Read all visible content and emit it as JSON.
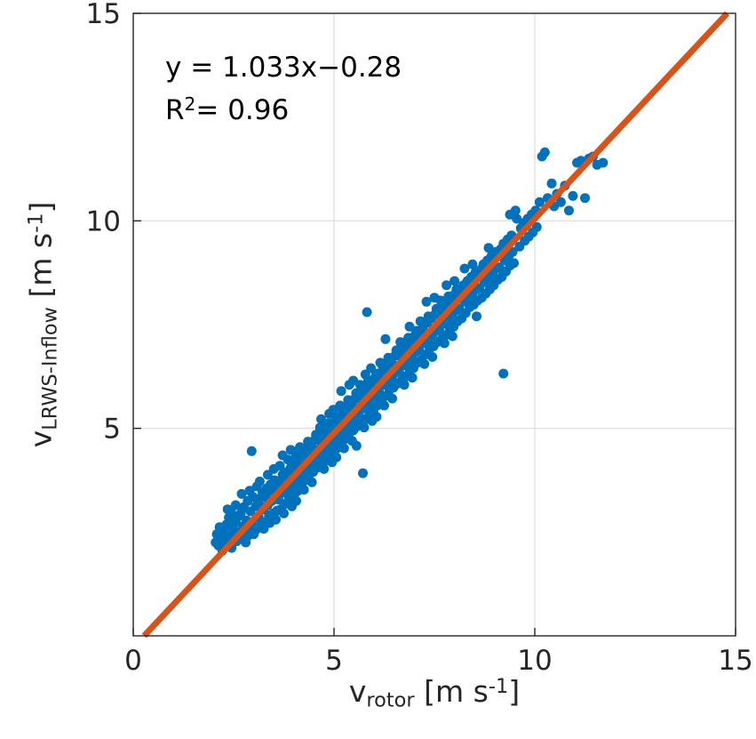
{
  "figure": {
    "background": "#ffffff"
  },
  "annotation": {
    "equation": "y = 1.033x−0.28",
    "r2_prefix": "R",
    "r2_sup": "2",
    "r2_rest": "= 0.96"
  },
  "axes": {
    "xlabel": {
      "base": "v",
      "sub": "rotor",
      "unit_open": " [m s",
      "sup": "-1",
      "unit_close": "]"
    },
    "ylabel": {
      "base": "v",
      "sub": "LRWS-Inflow",
      "unit_open": " [m s",
      "sup": "-1",
      "unit_close": "]"
    }
  },
  "chart_data": {
    "type": "scatter",
    "title": "",
    "xlabel": "v_rotor [m s^-1]",
    "ylabel": "v_LRWS-Inflow [m s^-1]",
    "xlim": [
      0,
      15
    ],
    "ylim": [
      0,
      15
    ],
    "x_ticks": [
      0,
      5,
      10,
      15
    ],
    "y_ticks": [
      5,
      10,
      15
    ],
    "grid": true,
    "grid_color": "#dcdcdc",
    "axes_color": "#262626",
    "marker_color": "#0072BD",
    "fit_line": {
      "slope": 1.033,
      "intercept": -0.28,
      "r_squared": 0.96,
      "color": "#D95319",
      "label": "y = 1.033x−0.28"
    },
    "points": [
      [
        2.05,
        2.25
      ],
      [
        2.08,
        2.45
      ],
      [
        2.12,
        2.18
      ],
      [
        2.15,
        2.62
      ],
      [
        2.18,
        2.3
      ],
      [
        2.22,
        2.05
      ],
      [
        2.25,
        2.52
      ],
      [
        2.28,
        2.33
      ],
      [
        2.32,
        2.68
      ],
      [
        2.35,
        2.2
      ],
      [
        2.38,
        2.85
      ],
      [
        2.42,
        2.4
      ],
      [
        2.45,
        2.12
      ],
      [
        2.48,
        2.58
      ],
      [
        2.52,
        2.35
      ],
      [
        2.55,
        2.75
      ],
      [
        2.58,
        2.28
      ],
      [
        2.35,
        3.05
      ],
      [
        2.45,
        2.95
      ],
      [
        2.55,
        3.15
      ],
      [
        2.6,
        2.5
      ],
      [
        2.62,
        2.88
      ],
      [
        2.65,
        2.42
      ],
      [
        2.68,
        2.95
      ],
      [
        2.72,
        2.6
      ],
      [
        2.75,
        3.1
      ],
      [
        2.78,
        2.35
      ],
      [
        2.82,
        2.78
      ],
      [
        2.85,
        3.25
      ],
      [
        2.88,
        2.55
      ],
      [
        2.92,
        3.0
      ],
      [
        2.95,
        2.7
      ],
      [
        2.98,
        3.35
      ],
      [
        3.02,
        2.62
      ],
      [
        3.05,
        3.12
      ],
      [
        3.08,
        2.85
      ],
      [
        2.7,
        3.42
      ],
      [
        2.8,
        2.25
      ],
      [
        2.9,
        3.5
      ],
      [
        3.0,
        2.45
      ],
      [
        3.1,
        3.28
      ],
      [
        2.95,
        4.45
      ],
      [
        2.85,
        2.4
      ],
      [
        3.05,
        2.55
      ],
      [
        2.75,
        2.65
      ],
      [
        3.08,
        3.6
      ],
      [
        3.12,
        2.88
      ],
      [
        3.15,
        3.3
      ],
      [
        3.18,
        2.65
      ],
      [
        3.22,
        3.45
      ],
      [
        3.25,
        3.05
      ],
      [
        3.28,
        2.75
      ],
      [
        3.32,
        3.55
      ],
      [
        3.35,
        3.15
      ],
      [
        3.38,
        2.9
      ],
      [
        3.42,
        3.65
      ],
      [
        3.45,
        3.25
      ],
      [
        3.48,
        2.95
      ],
      [
        3.52,
        3.75
      ],
      [
        3.55,
        3.35
      ],
      [
        3.58,
        3.02
      ],
      [
        3.15,
        3.72
      ],
      [
        3.25,
        2.58
      ],
      [
        3.35,
        3.88
      ],
      [
        3.45,
        3.5
      ],
      [
        3.55,
        2.8
      ],
      [
        3.6,
        3.42
      ],
      [
        3.2,
        3.1
      ],
      [
        3.3,
        3.35
      ],
      [
        3.4,
        2.72
      ],
      [
        3.5,
        4.02
      ],
      [
        3.58,
        3.6
      ],
      [
        3.62,
        3.28
      ],
      [
        3.65,
        3.72
      ],
      [
        3.68,
        3.05
      ],
      [
        3.72,
        3.88
      ],
      [
        3.75,
        3.45
      ],
      [
        3.78,
        3.18
      ],
      [
        3.82,
        3.95
      ],
      [
        3.85,
        3.55
      ],
      [
        3.88,
        3.3
      ],
      [
        3.92,
        4.05
      ],
      [
        3.95,
        3.65
      ],
      [
        3.98,
        3.38
      ],
      [
        4.02,
        4.15
      ],
      [
        4.05,
        3.75
      ],
      [
        4.08,
        3.48
      ],
      [
        3.65,
        4.1
      ],
      [
        3.75,
        2.95
      ],
      [
        3.85,
        4.25
      ],
      [
        3.95,
        3.12
      ],
      [
        4.05,
        4.32
      ],
      [
        3.7,
        3.6
      ],
      [
        3.8,
        3.8
      ],
      [
        3.9,
        3.52
      ],
      [
        4.0,
        3.9
      ],
      [
        4.08,
        4.45
      ],
      [
        3.72,
        4.35
      ],
      [
        3.92,
        4.48
      ],
      [
        4.06,
        3.25
      ],
      [
        4.12,
        3.85
      ],
      [
        4.15,
        4.28
      ],
      [
        4.18,
        3.62
      ],
      [
        4.22,
        4.42
      ],
      [
        4.25,
        4.02
      ],
      [
        4.28,
        3.75
      ],
      [
        4.32,
        4.52
      ],
      [
        4.35,
        4.12
      ],
      [
        4.38,
        3.88
      ],
      [
        4.42,
        4.62
      ],
      [
        4.45,
        4.22
      ],
      [
        4.48,
        3.95
      ],
      [
        4.52,
        4.72
      ],
      [
        4.55,
        4.32
      ],
      [
        4.58,
        4.05
      ],
      [
        4.15,
        4.55
      ],
      [
        4.25,
        3.52
      ],
      [
        4.35,
        4.68
      ],
      [
        4.45,
        3.7
      ],
      [
        4.55,
        4.85
      ],
      [
        4.2,
        4.15
      ],
      [
        4.3,
        4.35
      ],
      [
        4.4,
        4.0
      ],
      [
        4.5,
        4.5
      ],
      [
        4.58,
        4.4
      ],
      [
        4.12,
        4.05
      ],
      [
        4.22,
        3.7
      ],
      [
        4.32,
        3.95
      ],
      [
        4.42,
        4.38
      ],
      [
        4.52,
        4.18
      ],
      [
        4.62,
        4.35
      ],
      [
        4.65,
        4.75
      ],
      [
        4.68,
        4.12
      ],
      [
        4.72,
        4.88
      ],
      [
        4.75,
        4.48
      ],
      [
        4.78,
        4.22
      ],
      [
        4.82,
        4.98
      ],
      [
        4.85,
        4.58
      ],
      [
        4.88,
        4.32
      ],
      [
        4.92,
        5.08
      ],
      [
        4.95,
        4.68
      ],
      [
        4.98,
        4.42
      ],
      [
        5.02,
        5.18
      ],
      [
        5.05,
        4.78
      ],
      [
        5.08,
        4.52
      ],
      [
        4.65,
        5.02
      ],
      [
        4.75,
        4.02
      ],
      [
        4.85,
        5.12
      ],
      [
        4.95,
        4.18
      ],
      [
        5.05,
        5.28
      ],
      [
        4.7,
        4.62
      ],
      [
        4.8,
        4.82
      ],
      [
        4.9,
        4.5
      ],
      [
        5.0,
        4.95
      ],
      [
        5.08,
        5.05
      ],
      [
        4.62,
        4.88
      ],
      [
        4.72,
        4.28
      ],
      [
        4.82,
        4.45
      ],
      [
        4.92,
        4.85
      ],
      [
        5.02,
        4.62
      ],
      [
        4.68,
        5.22
      ],
      [
        4.88,
        5.35
      ],
      [
        4.98,
        5.45
      ],
      [
        5.06,
        4.3
      ],
      [
        5.12,
        4.85
      ],
      [
        5.15,
        5.28
      ],
      [
        5.18,
        4.62
      ],
      [
        5.22,
        5.42
      ],
      [
        5.25,
        5.02
      ],
      [
        5.28,
        4.75
      ],
      [
        5.32,
        5.52
      ],
      [
        5.35,
        5.12
      ],
      [
        5.38,
        4.88
      ],
      [
        5.42,
        5.62
      ],
      [
        5.45,
        5.22
      ],
      [
        5.48,
        4.95
      ],
      [
        5.52,
        5.72
      ],
      [
        5.55,
        5.32
      ],
      [
        5.58,
        5.05
      ],
      [
        5.15,
        5.55
      ],
      [
        5.25,
        4.52
      ],
      [
        5.35,
        5.68
      ],
      [
        5.45,
        4.7
      ],
      [
        5.55,
        5.85
      ],
      [
        5.2,
        5.15
      ],
      [
        5.3,
        5.35
      ],
      [
        5.4,
        5.0
      ],
      [
        5.5,
        5.5
      ],
      [
        5.58,
        5.4
      ],
      [
        5.12,
        5.05
      ],
      [
        5.22,
        4.7
      ],
      [
        5.32,
        4.95
      ],
      [
        5.42,
        5.38
      ],
      [
        5.52,
        5.18
      ],
      [
        5.18,
        5.9
      ],
      [
        5.38,
        6.05
      ],
      [
        5.48,
        6.15
      ],
      [
        5.56,
        4.58
      ],
      [
        5.62,
        5.35
      ],
      [
        5.65,
        5.78
      ],
      [
        5.68,
        5.12
      ],
      [
        5.72,
        5.92
      ],
      [
        5.75,
        5.48
      ],
      [
        5.78,
        5.22
      ],
      [
        5.82,
        6.02
      ],
      [
        5.85,
        5.58
      ],
      [
        5.88,
        5.32
      ],
      [
        5.92,
        6.12
      ],
      [
        5.95,
        5.68
      ],
      [
        5.98,
        5.42
      ],
      [
        6.02,
        6.22
      ],
      [
        6.05,
        5.82
      ],
      [
        6.08,
        5.55
      ],
      [
        5.65,
        6.05
      ],
      [
        5.75,
        5.02
      ],
      [
        5.85,
        6.15
      ],
      [
        5.95,
        5.18
      ],
      [
        6.05,
        6.32
      ],
      [
        5.7,
        5.62
      ],
      [
        5.8,
        5.85
      ],
      [
        5.9,
        5.52
      ],
      [
        6.0,
        5.95
      ],
      [
        6.08,
        6.08
      ],
      [
        5.72,
        3.92
      ],
      [
        5.82,
        7.8
      ],
      [
        5.92,
        6.45
      ],
      [
        5.78,
        6.3
      ],
      [
        6.06,
        5.28
      ],
      [
        6.12,
        5.88
      ],
      [
        6.15,
        6.32
      ],
      [
        6.18,
        5.65
      ],
      [
        6.22,
        6.45
      ],
      [
        6.25,
        6.05
      ],
      [
        6.28,
        5.78
      ],
      [
        6.32,
        6.55
      ],
      [
        6.35,
        6.15
      ],
      [
        6.38,
        5.92
      ],
      [
        6.42,
        6.65
      ],
      [
        6.45,
        6.25
      ],
      [
        6.48,
        5.98
      ],
      [
        6.52,
        6.75
      ],
      [
        6.55,
        6.35
      ],
      [
        6.58,
        6.08
      ],
      [
        6.15,
        6.58
      ],
      [
        6.25,
        5.55
      ],
      [
        6.35,
        6.7
      ],
      [
        6.45,
        5.72
      ],
      [
        6.55,
        6.88
      ],
      [
        6.2,
        6.18
      ],
      [
        6.3,
        6.38
      ],
      [
        6.4,
        6.02
      ],
      [
        6.5,
        6.52
      ],
      [
        6.58,
        6.42
      ],
      [
        6.28,
        7.15
      ],
      [
        6.62,
        6.38
      ],
      [
        6.65,
        6.82
      ],
      [
        6.68,
        6.15
      ],
      [
        6.72,
        6.95
      ],
      [
        6.75,
        6.52
      ],
      [
        6.78,
        6.25
      ],
      [
        6.82,
        7.05
      ],
      [
        6.85,
        6.62
      ],
      [
        6.88,
        6.35
      ],
      [
        6.92,
        7.15
      ],
      [
        6.95,
        6.72
      ],
      [
        6.98,
        6.45
      ],
      [
        7.02,
        7.25
      ],
      [
        7.05,
        6.85
      ],
      [
        7.08,
        6.58
      ],
      [
        6.65,
        7.08
      ],
      [
        6.75,
        6.05
      ],
      [
        6.85,
        7.18
      ],
      [
        6.95,
        6.22
      ],
      [
        7.05,
        7.35
      ],
      [
        6.7,
        6.65
      ],
      [
        6.8,
        6.88
      ],
      [
        6.9,
        6.55
      ],
      [
        7.0,
        6.98
      ],
      [
        7.08,
        7.1
      ],
      [
        6.88,
        7.45
      ],
      [
        7.12,
        6.88
      ],
      [
        7.15,
        7.32
      ],
      [
        7.18,
        6.65
      ],
      [
        7.22,
        7.45
      ],
      [
        7.25,
        7.05
      ],
      [
        7.28,
        6.78
      ],
      [
        7.32,
        7.55
      ],
      [
        7.35,
        7.15
      ],
      [
        7.38,
        6.92
      ],
      [
        7.42,
        7.65
      ],
      [
        7.45,
        7.25
      ],
      [
        7.48,
        6.98
      ],
      [
        7.52,
        7.75
      ],
      [
        7.55,
        7.35
      ],
      [
        7.58,
        7.08
      ],
      [
        7.15,
        7.58
      ],
      [
        7.25,
        6.55
      ],
      [
        7.35,
        7.7
      ],
      [
        7.45,
        6.72
      ],
      [
        7.55,
        7.88
      ],
      [
        7.3,
        8.05
      ],
      [
        7.5,
        8.15
      ],
      [
        7.62,
        7.38
      ],
      [
        7.65,
        7.82
      ],
      [
        7.68,
        7.15
      ],
      [
        7.72,
        7.95
      ],
      [
        7.75,
        7.52
      ],
      [
        7.78,
        7.25
      ],
      [
        7.82,
        8.05
      ],
      [
        7.85,
        7.62
      ],
      [
        7.88,
        7.35
      ],
      [
        7.92,
        8.15
      ],
      [
        7.95,
        7.72
      ],
      [
        7.98,
        7.45
      ],
      [
        8.02,
        8.25
      ],
      [
        8.05,
        7.85
      ],
      [
        8.08,
        7.58
      ],
      [
        7.65,
        8.08
      ],
      [
        7.75,
        7.05
      ],
      [
        7.85,
        8.18
      ],
      [
        7.95,
        7.22
      ],
      [
        8.05,
        8.35
      ],
      [
        7.8,
        8.45
      ],
      [
        8.0,
        8.55
      ],
      [
        8.12,
        7.88
      ],
      [
        8.15,
        8.32
      ],
      [
        8.18,
        7.65
      ],
      [
        8.22,
        8.45
      ],
      [
        8.25,
        8.05
      ],
      [
        8.28,
        7.78
      ],
      [
        8.32,
        8.55
      ],
      [
        8.35,
        8.15
      ],
      [
        8.38,
        7.92
      ],
      [
        8.42,
        8.65
      ],
      [
        8.45,
        8.25
      ],
      [
        8.48,
        7.98
      ],
      [
        8.52,
        8.75
      ],
      [
        8.55,
        8.35
      ],
      [
        8.58,
        8.08
      ],
      [
        8.25,
        8.85
      ],
      [
        8.45,
        8.95
      ],
      [
        8.55,
        7.7
      ],
      [
        8.62,
        8.38
      ],
      [
        8.65,
        8.82
      ],
      [
        8.68,
        8.15
      ],
      [
        8.72,
        8.95
      ],
      [
        8.75,
        8.52
      ],
      [
        8.78,
        8.25
      ],
      [
        8.82,
        9.05
      ],
      [
        8.85,
        8.62
      ],
      [
        8.88,
        8.35
      ],
      [
        8.92,
        9.15
      ],
      [
        8.95,
        8.72
      ],
      [
        8.98,
        8.45
      ],
      [
        9.02,
        9.25
      ],
      [
        9.05,
        8.85
      ],
      [
        9.08,
        8.58
      ],
      [
        8.85,
        9.35
      ],
      [
        9.12,
        8.88
      ],
      [
        9.15,
        9.32
      ],
      [
        9.18,
        8.65
      ],
      [
        9.22,
        9.45
      ],
      [
        9.25,
        9.05
      ],
      [
        9.28,
        8.78
      ],
      [
        9.32,
        9.55
      ],
      [
        9.35,
        9.15
      ],
      [
        9.38,
        8.92
      ],
      [
        9.42,
        9.65
      ],
      [
        9.45,
        9.25
      ],
      [
        9.48,
        8.98
      ],
      [
        9.22,
        6.32
      ],
      [
        9.55,
        10.05
      ],
      [
        9.38,
        10.15
      ],
      [
        9.52,
        10.25
      ],
      [
        9.62,
        9.38
      ],
      [
        9.65,
        9.82
      ],
      [
        9.72,
        9.95
      ],
      [
        9.75,
        9.52
      ],
      [
        9.82,
        10.05
      ],
      [
        9.85,
        9.62
      ],
      [
        9.92,
        10.15
      ],
      [
        9.95,
        9.72
      ],
      [
        10.02,
        10.25
      ],
      [
        10.05,
        9.85
      ],
      [
        10.12,
        10.45
      ],
      [
        10.18,
        11.55
      ],
      [
        10.25,
        11.65
      ],
      [
        10.32,
        10.55
      ],
      [
        10.42,
        10.9
      ],
      [
        10.48,
        10.35
      ],
      [
        10.55,
        10.65
      ],
      [
        10.65,
        10.45
      ],
      [
        10.75,
        10.85
      ],
      [
        10.85,
        10.25
      ],
      [
        10.95,
        10.6
      ],
      [
        11.05,
        11.4
      ],
      [
        11.15,
        11.45
      ],
      [
        11.25,
        10.55
      ],
      [
        11.35,
        11.5
      ],
      [
        11.45,
        11.55
      ],
      [
        11.55,
        11.35
      ],
      [
        11.7,
        11.4
      ]
    ]
  }
}
